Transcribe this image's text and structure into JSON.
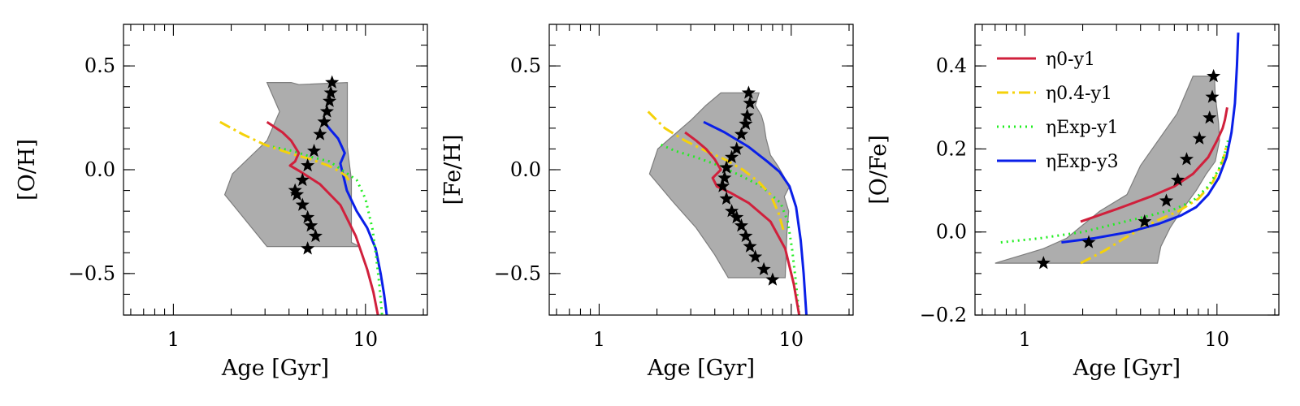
{
  "chart_data": [
    {
      "type": "line",
      "panel": "left",
      "xlabel": "Age [Gyr]",
      "ylabel": "[O/H]",
      "xscale": "log",
      "xlim": [
        0.55,
        21
      ],
      "ylim": [
        -0.7,
        0.7
      ],
      "xticks": [
        {
          "value": 1,
          "label": "1"
        },
        {
          "value": 10,
          "label": "10"
        }
      ],
      "yticks": [
        {
          "value": 0.5,
          "label": "0.5"
        },
        {
          "value": 0.0,
          "label": "0.0"
        },
        {
          "value": -0.5,
          "label": "−0.5"
        }
      ],
      "band": [
        [
          3.07,
          0.42
        ],
        [
          4.1,
          0.42
        ],
        [
          4.5,
          0.41
        ],
        [
          8.05,
          0.42
        ],
        [
          8.05,
          0.11
        ],
        [
          8.45,
          -0.05
        ],
        [
          8.45,
          -0.35
        ],
        [
          9.3,
          -0.37
        ],
        [
          3.07,
          -0.37
        ],
        [
          1.85,
          -0.12
        ],
        [
          2.03,
          -0.02
        ],
        [
          3.07,
          0.14
        ],
        [
          3.57,
          0.28
        ],
        [
          3.07,
          0.42
        ]
      ],
      "stars": {
        "x": [
          6.7,
          6.6,
          6.5,
          6.3,
          6.1,
          5.8,
          5.4,
          5.0,
          4.7,
          4.4,
          4.3,
          4.7,
          5.0,
          5.2,
          5.5,
          5.0
        ],
        "y": [
          0.42,
          0.37,
          0.33,
          0.28,
          0.23,
          0.17,
          0.09,
          0.02,
          -0.05,
          -0.12,
          -0.1,
          -0.17,
          -0.23,
          -0.27,
          -0.32,
          -0.38
        ]
      },
      "series": [
        {
          "name": "ηExp-y3",
          "color": "#0a1fe8",
          "dash": "",
          "x": [
            6.1,
            6.6,
            7.2,
            7.8,
            7.4,
            8.0,
            9.0,
            10.2,
            11.3,
            12.0,
            12.5,
            12.9
          ],
          "y": [
            0.23,
            0.19,
            0.15,
            0.08,
            0.03,
            -0.1,
            -0.2,
            -0.28,
            -0.38,
            -0.5,
            -0.6,
            -0.7
          ]
        },
        {
          "name": "ηExp-y1",
          "color": "#22ee22",
          "dash": "2 5",
          "x": [
            3.3,
            4.2,
            5.3,
            6.5,
            7.8,
            9.0,
            10.0,
            10.9,
            11.4,
            11.8,
            12.2
          ],
          "y": [
            0.11,
            0.09,
            0.06,
            0.04,
            -0.01,
            -0.05,
            -0.14,
            -0.29,
            -0.43,
            -0.55,
            -0.7
          ]
        },
        {
          "name": "η0.4-y1",
          "color": "#f5d20a",
          "dash": "14 5 3 5",
          "x": [
            1.75,
            2.3,
            3.0,
            4.0,
            5.2,
            6.4,
            7.4,
            7.9,
            8.2
          ],
          "y": [
            0.23,
            0.17,
            0.12,
            0.08,
            0.05,
            0.02,
            -0.01,
            -0.03,
            -0.05
          ]
        },
        {
          "name": "η0-y1",
          "color": "#d0203c",
          "dash": "",
          "x": [
            3.07,
            3.7,
            4.1,
            4.5,
            4.3,
            4.05,
            4.6,
            5.8,
            7.4,
            8.9,
            10.2,
            11.0,
            11.6
          ],
          "y": [
            0.23,
            0.18,
            0.14,
            0.08,
            0.04,
            0.02,
            -0.01,
            -0.07,
            -0.17,
            -0.32,
            -0.48,
            -0.59,
            -0.7
          ]
        }
      ]
    },
    {
      "type": "line",
      "panel": "middle",
      "xlabel": "Age [Gyr]",
      "ylabel": "[Fe/H]",
      "xscale": "log",
      "xlim": [
        0.55,
        21
      ],
      "ylim": [
        -0.7,
        0.7
      ],
      "xticks": [
        {
          "value": 1,
          "label": "1"
        },
        {
          "value": 10,
          "label": "10"
        }
      ],
      "yticks": [
        {
          "value": 0.5,
          "label": "0.5"
        },
        {
          "value": 0.0,
          "label": "0.0"
        },
        {
          "value": -0.5,
          "label": "−0.5"
        }
      ],
      "band": [
        [
          3.6,
          0.31
        ],
        [
          4.3,
          0.37
        ],
        [
          6.8,
          0.37
        ],
        [
          6.5,
          0.31
        ],
        [
          7.0,
          0.26
        ],
        [
          7.2,
          0.22
        ],
        [
          7.4,
          0.15
        ],
        [
          7.8,
          0.07
        ],
        [
          8.5,
          0.02
        ],
        [
          9.0,
          -0.02
        ],
        [
          9.8,
          -0.08
        ],
        [
          9.2,
          -0.13
        ],
        [
          9.7,
          -0.2
        ],
        [
          9.5,
          -0.3
        ],
        [
          9.3,
          -0.52
        ],
        [
          4.7,
          -0.52
        ],
        [
          4.0,
          -0.41
        ],
        [
          3.2,
          -0.28
        ],
        [
          2.4,
          -0.15
        ],
        [
          1.83,
          -0.02
        ],
        [
          2.02,
          0.1
        ],
        [
          3.02,
          0.24
        ],
        [
          3.6,
          0.31
        ]
      ],
      "stars": {
        "x": [
          6.0,
          6.1,
          5.9,
          5.8,
          5.5,
          5.2,
          4.9,
          4.6,
          4.5,
          4.4,
          4.6,
          4.9,
          5.2,
          5.5,
          5.8,
          6.1,
          6.5,
          7.2,
          8.0
        ],
        "y": [
          0.37,
          0.32,
          0.26,
          0.22,
          0.17,
          0.1,
          0.06,
          0.01,
          -0.04,
          -0.08,
          -0.14,
          -0.2,
          -0.23,
          -0.27,
          -0.32,
          -0.37,
          -0.42,
          -0.48,
          -0.53
        ]
      },
      "series": [
        {
          "name": "ηExp-y3",
          "color": "#0a1fe8",
          "dash": "",
          "x": [
            3.5,
            4.5,
            6.0,
            7.5,
            8.7,
            9.8,
            10.6,
            11.2,
            11.6,
            12.0
          ],
          "y": [
            0.23,
            0.18,
            0.11,
            0.04,
            -0.01,
            -0.08,
            -0.18,
            -0.34,
            -0.5,
            -0.7
          ]
        },
        {
          "name": "ηExp-y1",
          "color": "#22ee22",
          "dash": "2 5",
          "x": [
            2.1,
            2.5,
            3.2,
            4.2,
            5.5,
            7.0,
            8.8,
            9.6,
            10.1,
            10.6,
            11.0
          ],
          "y": [
            0.12,
            0.09,
            0.06,
            0.02,
            -0.03,
            -0.08,
            -0.16,
            -0.25,
            -0.38,
            -0.55,
            -0.7
          ]
        },
        {
          "name": "η0.4-y1",
          "color": "#f5d20a",
          "dash": "14 5 3 5",
          "x": [
            1.8,
            2.2,
            2.8,
            3.6,
            4.5,
            5.6,
            6.8,
            7.8,
            8.6,
            9.1
          ],
          "y": [
            0.28,
            0.2,
            0.14,
            0.09,
            0.05,
            0.0,
            -0.06,
            -0.12,
            -0.21,
            -0.29
          ]
        },
        {
          "name": "η0-y1",
          "color": "#d0203c",
          "dash": "",
          "x": [
            2.8,
            3.2,
            3.6,
            4.0,
            4.3,
            3.9,
            4.1,
            4.8,
            6.0,
            7.8,
            9.3,
            10.3,
            11.0
          ],
          "y": [
            0.18,
            0.14,
            0.1,
            0.05,
            0.0,
            -0.04,
            -0.08,
            -0.11,
            -0.16,
            -0.25,
            -0.38,
            -0.55,
            -0.7
          ]
        }
      ]
    },
    {
      "type": "line",
      "panel": "right",
      "xlabel": "Age [Gyr]",
      "ylabel": "[O/Fe]",
      "xscale": "log",
      "xlim": [
        0.55,
        21
      ],
      "ylim": [
        -0.2,
        0.5
      ],
      "xticks": [
        {
          "value": 1,
          "label": "1"
        },
        {
          "value": 10,
          "label": "10"
        }
      ],
      "yticks": [
        {
          "value": 0.4,
          "label": "0.4"
        },
        {
          "value": 0.2,
          "label": "0.2"
        },
        {
          "value": 0.0,
          "label": "0.0"
        },
        {
          "value": -0.2,
          "label": "−0.2"
        }
      ],
      "legend_position": "top-left",
      "band": [
        [
          7.5,
          0.375
        ],
        [
          9.7,
          0.375
        ],
        [
          9.8,
          0.33
        ],
        [
          10.2,
          0.26
        ],
        [
          10.3,
          0.22
        ],
        [
          9.8,
          0.17
        ],
        [
          8.8,
          0.14
        ],
        [
          7.8,
          0.1
        ],
        [
          6.5,
          0.05
        ],
        [
          5.7,
          0.01
        ],
        [
          5.1,
          -0.035
        ],
        [
          4.9,
          -0.075
        ],
        [
          0.7,
          -0.075
        ],
        [
          1.25,
          -0.04
        ],
        [
          1.65,
          -0.015
        ],
        [
          2.45,
          0.05
        ],
        [
          3.4,
          0.09
        ],
        [
          4.0,
          0.16
        ],
        [
          6.2,
          0.285
        ],
        [
          7.5,
          0.375
        ]
      ],
      "stars": {
        "x": [
          1.25,
          2.15,
          4.2,
          5.45,
          6.25,
          6.95,
          8.1,
          9.15,
          9.45,
          9.6
        ],
        "y": [
          -0.075,
          -0.025,
          0.025,
          0.075,
          0.125,
          0.175,
          0.225,
          0.275,
          0.325,
          0.375
        ]
      },
      "series": [
        {
          "name": "η0-y1",
          "color": "#d0203c",
          "dash": "",
          "x": [
            1.95,
            3.0,
            4.5,
            6.0,
            7.5,
            9.0,
            10.0,
            10.7,
            11.0,
            11.3
          ],
          "y": [
            0.025,
            0.055,
            0.085,
            0.11,
            0.14,
            0.18,
            0.22,
            0.25,
            0.27,
            0.3
          ]
        },
        {
          "name": "η0.4-y1",
          "color": "#f5d20a",
          "dash": "14 5 3 5",
          "x": [
            1.95,
            2.6,
            3.3,
            4.1,
            5.0,
            6.3,
            8.0,
            9.5,
            10.5,
            11.0,
            11.2
          ],
          "y": [
            -0.075,
            -0.045,
            -0.015,
            0.01,
            0.03,
            0.05,
            0.08,
            0.12,
            0.16,
            0.19,
            0.21
          ]
        },
        {
          "name": "ηExp-y1",
          "color": "#22ee22",
          "dash": "2 5",
          "x": [
            0.75,
            1.2,
            2.0,
            3.0,
            4.5,
            6.0,
            7.5,
            9.0,
            10.2,
            11.0,
            11.4
          ],
          "y": [
            -0.025,
            -0.015,
            0.0,
            0.02,
            0.04,
            0.055,
            0.075,
            0.11,
            0.15,
            0.19,
            0.22
          ]
        },
        {
          "name": "ηExp-y3",
          "color": "#0a1fe8",
          "dash": "",
          "x": [
            1.55,
            2.3,
            3.5,
            5.0,
            6.5,
            7.8,
            9.0,
            10.2,
            11.2,
            11.9,
            12.4,
            12.7,
            12.9
          ],
          "y": [
            -0.025,
            -0.015,
            0.0,
            0.02,
            0.04,
            0.06,
            0.09,
            0.13,
            0.18,
            0.24,
            0.31,
            0.4,
            0.48
          ]
        }
      ]
    }
  ]
}
